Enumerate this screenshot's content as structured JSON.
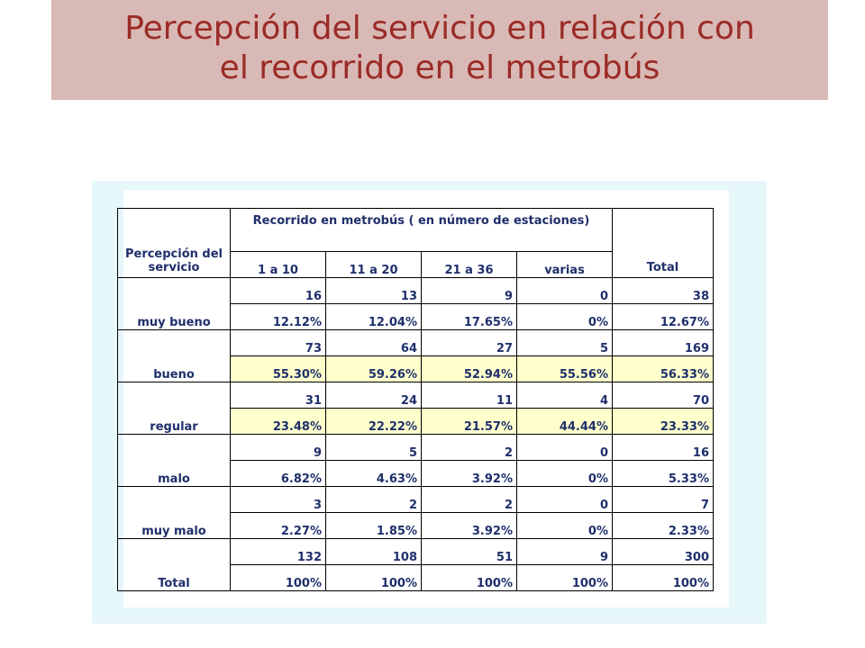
{
  "title": {
    "line1": "Percepción del servicio en relación con",
    "line2": "el recorrido en el metrobús"
  },
  "table": {
    "header_row_label": "Percepción del servicio",
    "header_group": "Recorrido en metrobús ( en número de estaciones)",
    "header_total": "Total",
    "columns": [
      "1 a 10",
      "11 a 20",
      "21 a  36",
      "varias"
    ],
    "rows": [
      {
        "label": "muy bueno",
        "counts": [
          "16",
          "13",
          "9",
          "0",
          "38"
        ],
        "percents": [
          "12.12%",
          "12.04%",
          "17.65%",
          "0%",
          "12.67%"
        ]
      },
      {
        "label": "bueno",
        "counts": [
          "73",
          "64",
          "27",
          "5",
          "169"
        ],
        "percents": [
          "55.30%",
          "59.26%",
          "52.94%",
          "55.56%",
          "56.33%"
        ]
      },
      {
        "label": "regular",
        "counts": [
          "31",
          "24",
          "11",
          "4",
          "70"
        ],
        "percents": [
          "23.48%",
          "22.22%",
          "21.57%",
          "44.44%",
          "23.33%"
        ]
      },
      {
        "label": "malo",
        "counts": [
          "9",
          "5",
          "2",
          "0",
          "16"
        ],
        "percents": [
          "6.82%",
          "4.63%",
          "3.92%",
          "0%",
          "5.33%"
        ]
      },
      {
        "label": "muy malo",
        "counts": [
          "3",
          "2",
          "2",
          "0",
          "7"
        ],
        "percents": [
          "2.27%",
          "1.85%",
          "3.92%",
          "0%",
          "2.33%"
        ]
      },
      {
        "label": "Total",
        "counts": [
          "132",
          "108",
          "51",
          "9",
          "300"
        ],
        "percents": [
          "100%",
          "100%",
          "100%",
          "100%",
          "100%"
        ]
      }
    ]
  },
  "colors": {
    "title_text": "#9b2b27",
    "title_banner": "#d9b9b5",
    "panel": "#e6f7fa",
    "highlight_row": "#ffffcc",
    "table_text": "#1f2f6b"
  }
}
